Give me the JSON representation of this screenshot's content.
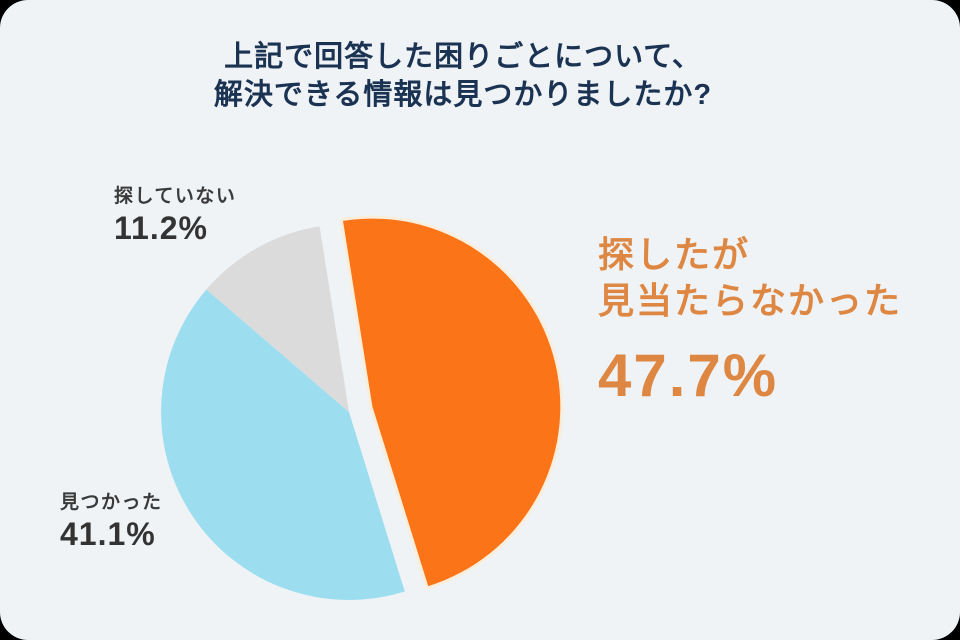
{
  "title": {
    "line1": "上記で回答した困りごとについて、",
    "line2": "解決できる情報は見つかりましたか?"
  },
  "colors": {
    "card_background": "#EFF3F6",
    "outside_background": "#000000",
    "title_text": "#1B3352",
    "dark_label_text": "#3A3A3A",
    "orange_slice": "#FB7418",
    "orange_halo": "#F9EEDC",
    "orange_label_text": "#DE8743",
    "blue_slice": "#9CDEF0",
    "gray_slice": "#DBDBDB"
  },
  "chart_data": {
    "type": "pie",
    "title": "上記で回答した困りごとについて、解決できる情報は見つかりましたか?",
    "start_angle_deg": -9,
    "clockwise": true,
    "legend_position": "none",
    "slices": [
      {
        "label": "探したが見当たらなかった",
        "value": 47.7,
        "color": "#FB7418",
        "exploded": true
      },
      {
        "label": "見つかった",
        "value": 41.1,
        "color": "#9CDEF0",
        "exploded": false
      },
      {
        "label": "探していない",
        "value": 11.2,
        "color": "#DBDBDB",
        "exploded": false
      }
    ]
  },
  "labels": {
    "not_searched": {
      "name": "探していない",
      "pct": "11.2%"
    },
    "found": {
      "name": "見つかった",
      "pct": "41.1%"
    },
    "not_found": {
      "line1": "探したが",
      "line2": "見当たらなかった",
      "pct": "47.7%"
    }
  }
}
